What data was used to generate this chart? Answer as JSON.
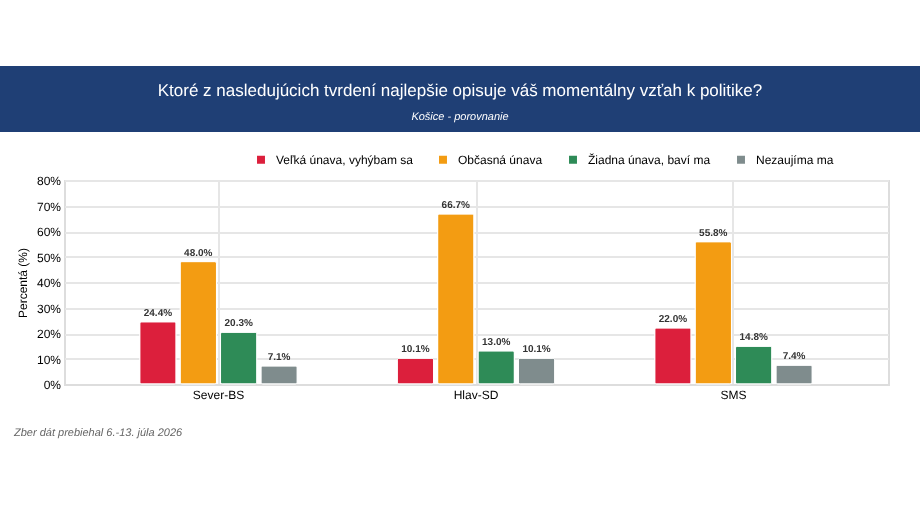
{
  "chart_data": {
    "type": "bar",
    "title": "Ktoré z nasledujúcich tvrdení najlepšie opisuje váš momentálny vzťah k politike?",
    "subtitle": "Košice - porovnanie",
    "ylabel": "Percentá (%)",
    "categories": [
      "Sever-BS",
      "Hlav-SD",
      "SMS"
    ],
    "series": [
      {
        "name": "Veľká únava, vyhýbam sa",
        "color": "#dc1f3c",
        "values": [
          24.4,
          10.1,
          22.0
        ],
        "value_labels": [
          "24.4%",
          "10.1%",
          "22.0%"
        ]
      },
      {
        "name": "Občasná únava",
        "color": "#f39c12",
        "values": [
          48.0,
          66.7,
          55.8
        ],
        "value_labels": [
          "48.0%",
          "66.7%",
          "55.8%"
        ]
      },
      {
        "name": "Žiadna únava, baví ma",
        "color": "#2e8b57",
        "values": [
          20.3,
          13.0,
          14.8
        ],
        "value_labels": [
          "20.3%",
          "13.0%",
          "14.8%"
        ]
      },
      {
        "name": "Nezaujíma ma",
        "color": "#7f8c8d",
        "values": [
          7.1,
          10.1,
          7.4
        ],
        "value_labels": [
          "7.1%",
          "10.1%",
          "7.4%"
        ]
      }
    ],
    "ylim": [
      0,
      80
    ],
    "yticks": [
      {
        "value": 0,
        "label": "0%"
      },
      {
        "value": 10,
        "label": "10%"
      },
      {
        "value": 20,
        "label": "20%"
      },
      {
        "value": 30,
        "label": "30%"
      },
      {
        "value": 40,
        "label": "40%"
      },
      {
        "value": 50,
        "label": "50%"
      },
      {
        "value": 60,
        "label": "60%"
      },
      {
        "value": 70,
        "label": "70%"
      },
      {
        "value": 80,
        "label": "80%"
      }
    ],
    "grid": true,
    "legend": "top",
    "annotations": [
      "Zber dát prebiehal 6.-13. júla 2026"
    ]
  }
}
